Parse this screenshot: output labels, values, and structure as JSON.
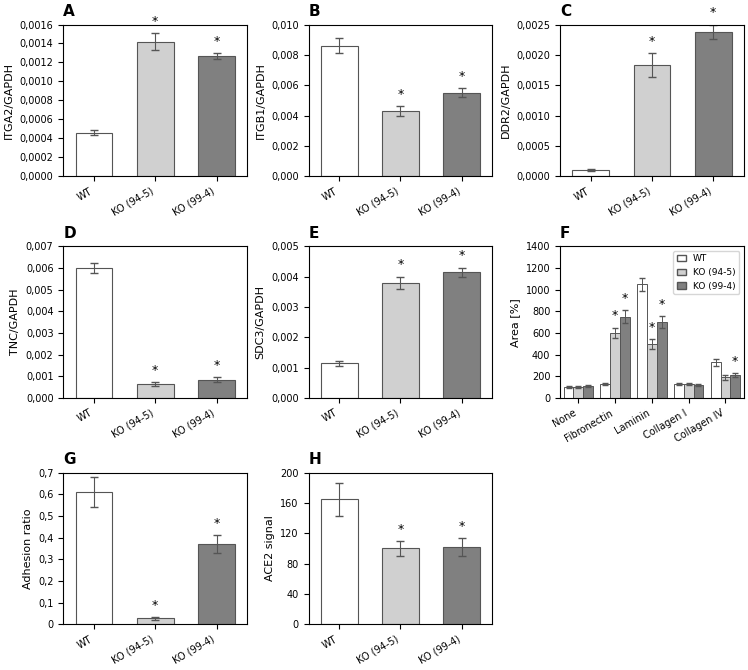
{
  "chart_data": [
    {
      "type": "bar",
      "title": "A",
      "ylabel": "ITGA2/GAPDH",
      "categories": [
        "WT",
        "KO (94-5)",
        "KO (99-4)"
      ],
      "values": [
        0.00046,
        0.00142,
        0.00127
      ],
      "errors": [
        3e-05,
        9e-05,
        3e-05
      ],
      "colors": [
        "white",
        "#d0d0d0",
        "#808080"
      ],
      "annotations": [
        {
          "text": "*",
          "category": "KO (94-5)"
        },
        {
          "text": "*",
          "category": "KO (99-4)"
        }
      ],
      "ylim": [
        0,
        0.0016
      ],
      "yticks": [
        {
          "value": 0.0,
          "label": "0,0000"
        },
        {
          "value": 0.0002,
          "label": "0,0002"
        },
        {
          "value": 0.0004,
          "label": "0,0004"
        },
        {
          "value": 0.0006,
          "label": "0,0006"
        },
        {
          "value": 0.0008,
          "label": "0,0008"
        },
        {
          "value": 0.001,
          "label": "0,0010"
        },
        {
          "value": 0.0012,
          "label": "0,0012"
        },
        {
          "value": 0.0014,
          "label": "0,0014"
        },
        {
          "value": 0.0016,
          "label": "0,0016"
        }
      ]
    },
    {
      "type": "bar",
      "title": "B",
      "ylabel": "ITGB1/GAPDH",
      "categories": [
        "WT",
        "KO (94-5)",
        "KO (99-4)"
      ],
      "values": [
        0.0086,
        0.0043,
        0.0055
      ],
      "errors": [
        0.0005,
        0.0003,
        0.0003
      ],
      "colors": [
        "white",
        "#d0d0d0",
        "#808080"
      ],
      "annotations": [
        {
          "text": "*",
          "category": "KO (94-5)"
        },
        {
          "text": "*",
          "category": "KO (99-4)"
        }
      ],
      "ylim": [
        0,
        0.01
      ],
      "yticks": [
        {
          "value": 0.0,
          "label": "0,000"
        },
        {
          "value": 0.002,
          "label": "0,002"
        },
        {
          "value": 0.004,
          "label": "0,004"
        },
        {
          "value": 0.006,
          "label": "0,006"
        },
        {
          "value": 0.008,
          "label": "0,008"
        },
        {
          "value": 0.01,
          "label": "0,010"
        }
      ]
    },
    {
      "type": "bar",
      "title": "C",
      "ylabel": "DDR2/GAPDH",
      "categories": [
        "WT",
        "KO (94-5)",
        "KO (99-4)"
      ],
      "values": [
        0.0001,
        0.00183,
        0.00238
      ],
      "errors": [
        2e-05,
        0.0002,
        0.00012
      ],
      "colors": [
        "white",
        "#d0d0d0",
        "#808080"
      ],
      "annotations": [
        {
          "text": "*",
          "category": "KO (94-5)"
        },
        {
          "text": "*",
          "category": "KO (99-4)"
        }
      ],
      "ylim": [
        0,
        0.0025
      ],
      "yticks": [
        {
          "value": 0.0,
          "label": "0,0000"
        },
        {
          "value": 0.0005,
          "label": "0,0005"
        },
        {
          "value": 0.001,
          "label": "0,0010"
        },
        {
          "value": 0.0015,
          "label": "0,0015"
        },
        {
          "value": 0.002,
          "label": "0,0020"
        },
        {
          "value": 0.0025,
          "label": "0,0025"
        }
      ]
    },
    {
      "type": "bar",
      "title": "D",
      "ylabel": "TNC/GAPDH",
      "categories": [
        "WT",
        "KO (94-5)",
        "KO (99-4)"
      ],
      "values": [
        0.006,
        0.00065,
        0.00085
      ],
      "errors": [
        0.00025,
        8e-05,
        0.0001
      ],
      "colors": [
        "white",
        "#d0d0d0",
        "#808080"
      ],
      "annotations": [
        {
          "text": "*",
          "category": "KO (94-5)"
        },
        {
          "text": "*",
          "category": "KO (99-4)"
        }
      ],
      "ylim": [
        0,
        0.007
      ],
      "yticks": [
        {
          "value": 0.0,
          "label": "0,000"
        },
        {
          "value": 0.001,
          "label": "0,001"
        },
        {
          "value": 0.002,
          "label": "0,002"
        },
        {
          "value": 0.003,
          "label": "0,003"
        },
        {
          "value": 0.004,
          "label": "0,004"
        },
        {
          "value": 0.005,
          "label": "0,005"
        },
        {
          "value": 0.006,
          "label": "0,006"
        },
        {
          "value": 0.007,
          "label": "0,007"
        }
      ]
    },
    {
      "type": "bar",
      "title": "E",
      "ylabel": "SDC3/GAPDH",
      "categories": [
        "WT",
        "KO (94-5)",
        "KO (99-4)"
      ],
      "values": [
        0.00115,
        0.0038,
        0.00415
      ],
      "errors": [
        8e-05,
        0.0002,
        0.00015
      ],
      "colors": [
        "white",
        "#d0d0d0",
        "#808080"
      ],
      "annotations": [
        {
          "text": "*",
          "category": "KO (94-5)"
        },
        {
          "text": "*",
          "category": "KO (99-4)"
        }
      ],
      "ylim": [
        0,
        0.005
      ],
      "yticks": [
        {
          "value": 0.0,
          "label": "0,000"
        },
        {
          "value": 0.001,
          "label": "0,001"
        },
        {
          "value": 0.002,
          "label": "0,002"
        },
        {
          "value": 0.003,
          "label": "0,003"
        },
        {
          "value": 0.004,
          "label": "0,004"
        },
        {
          "value": 0.005,
          "label": "0,005"
        }
      ]
    },
    {
      "type": "bar",
      "title": "F",
      "ylabel": "Area [%]",
      "categories": [
        "None",
        "Fibronectin",
        "Laminin",
        "Collagen I",
        "Collagen IV"
      ],
      "series": [
        {
          "name": "WT",
          "color": "white",
          "values": [
            100,
            130,
            1050,
            130,
            330
          ],
          "errors": [
            8,
            12,
            60,
            12,
            30
          ]
        },
        {
          "name": "KO (94-5)",
          "color": "#d0d0d0",
          "values": [
            100,
            600,
            500,
            130,
            190
          ],
          "errors": [
            7,
            50,
            45,
            10,
            20
          ]
        },
        {
          "name": "KO (99-4)",
          "color": "#808080",
          "values": [
            110,
            750,
            700,
            120,
            210
          ],
          "errors": [
            8,
            60,
            55,
            9,
            20
          ]
        }
      ],
      "annotations": [
        {
          "text": "*",
          "category": "Fibronectin",
          "series": "KO (94-5)"
        },
        {
          "text": "*",
          "category": "Laminin",
          "series": "KO (94-5)"
        },
        {
          "text": "*",
          "category": "Fibronectin",
          "series": "KO (99-4)"
        },
        {
          "text": "*",
          "category": "Laminin",
          "series": "KO (99-4)"
        },
        {
          "text": "*",
          "category": "Collagen IV",
          "series": "KO (99-4)"
        }
      ],
      "legend": "upper right",
      "ylim": [
        0,
        1400
      ],
      "yticks": [
        0,
        200,
        400,
        600,
        800,
        1000,
        1200,
        1400
      ]
    },
    {
      "type": "bar",
      "title": "G",
      "ylabel": "Adhesion ratio",
      "categories": [
        "WT",
        "KO (94-5)",
        "KO (99-4)"
      ],
      "values": [
        0.61,
        0.028,
        0.37
      ],
      "errors": [
        0.07,
        0.006,
        0.04
      ],
      "colors": [
        "white",
        "#d0d0d0",
        "#808080"
      ],
      "annotations": [
        {
          "text": "*",
          "category": "KO (94-5)"
        },
        {
          "text": "*",
          "category": "KO (99-4)"
        }
      ],
      "ylim": [
        0,
        0.7
      ],
      "yticks": [
        0,
        {
          "value": 0.1,
          "label": "0,1"
        },
        {
          "value": 0.2,
          "label": "0,2"
        },
        {
          "value": 0.3,
          "label": "0,3"
        },
        {
          "value": 0.4,
          "label": "0,4"
        },
        {
          "value": 0.5,
          "label": "0,5"
        },
        {
          "value": 0.6,
          "label": "0,6"
        },
        {
          "value": 0.7,
          "label": "0,7"
        }
      ]
    },
    {
      "type": "bar",
      "title": "H",
      "ylabel": "ACE2 signal",
      "categories": [
        "WT",
        "KO (94-5)",
        "KO (99-4)"
      ],
      "values": [
        165,
        100,
        102
      ],
      "errors": [
        22,
        10,
        12
      ],
      "colors": [
        "white",
        "#d0d0d0",
        "#808080"
      ],
      "annotations": [
        {
          "text": "*",
          "category": "KO (94-5)"
        },
        {
          "text": "*",
          "category": "KO (99-4)"
        }
      ],
      "ylim": [
        0,
        200
      ],
      "yticks": [
        0,
        40,
        80,
        120,
        160,
        200
      ]
    }
  ]
}
